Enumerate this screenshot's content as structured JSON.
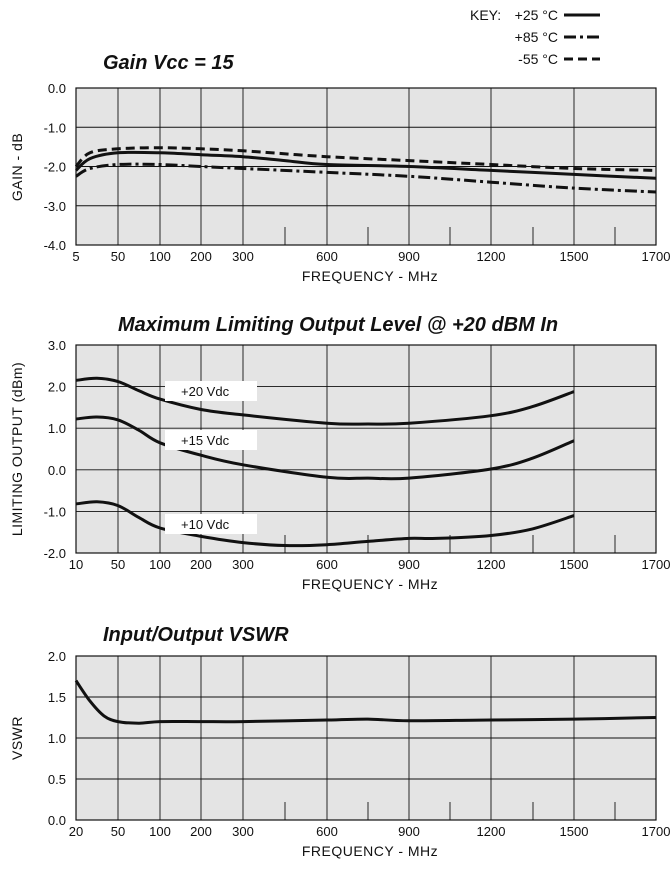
{
  "key": {
    "label": "KEY:",
    "entries": [
      {
        "text": "+25 °C",
        "style": "solid"
      },
      {
        "text": "+85 °C",
        "style": "dashdot"
      },
      {
        "text": "-55 °C",
        "style": "dashed"
      }
    ]
  },
  "chart_data": [
    {
      "type": "line",
      "id": "gain",
      "title": "Gain  Vcc = 15",
      "xlabel": "FREQUENCY - MHz",
      "ylabel": "GAIN - dB",
      "xticks": [
        "5",
        "50",
        "100",
        "200",
        "300",
        "600",
        "900",
        "1200",
        "1500",
        "1700"
      ],
      "yticks": [
        "0.0",
        "-1.0",
        "-2.0",
        "-3.0",
        "-4.0"
      ],
      "ylim": [
        -4,
        0
      ],
      "grid": true,
      "series": [
        {
          "name": "+25 °C",
          "style": "solid",
          "points": [
            [
              5,
              -2.1
            ],
            [
              20,
              -1.8
            ],
            [
              50,
              -1.65
            ],
            [
              100,
              -1.65
            ],
            [
              200,
              -1.7
            ],
            [
              300,
              -1.75
            ],
            [
              450,
              -1.85
            ],
            [
              600,
              -1.95
            ],
            [
              900,
              -2.0
            ],
            [
              1200,
              -2.1
            ],
            [
              1500,
              -2.2
            ],
            [
              1700,
              -2.3
            ]
          ]
        },
        {
          "name": "+85 °C",
          "style": "dashdot",
          "points": [
            [
              5,
              -2.25
            ],
            [
              20,
              -2.05
            ],
            [
              50,
              -1.95
            ],
            [
              100,
              -1.95
            ],
            [
              200,
              -2.0
            ],
            [
              300,
              -2.05
            ],
            [
              600,
              -2.15
            ],
            [
              900,
              -2.25
            ],
            [
              1200,
              -2.4
            ],
            [
              1500,
              -2.55
            ],
            [
              1700,
              -2.65
            ]
          ]
        },
        {
          "name": "-55 °C",
          "style": "dashed",
          "points": [
            [
              5,
              -2.0
            ],
            [
              20,
              -1.65
            ],
            [
              50,
              -1.55
            ],
            [
              100,
              -1.52
            ],
            [
              200,
              -1.55
            ],
            [
              300,
              -1.6
            ],
            [
              600,
              -1.75
            ],
            [
              900,
              -1.85
            ],
            [
              1200,
              -1.95
            ],
            [
              1500,
              -2.05
            ],
            [
              1700,
              -2.1
            ]
          ]
        }
      ]
    },
    {
      "type": "line",
      "id": "limiting",
      "title": "Maximum Limiting Output Level @ +20 dBM In",
      "xlabel": "FREQUENCY - MHz",
      "ylabel": "LIMITING OUTPUT (dBm)",
      "xticks": [
        "10",
        "50",
        "100",
        "200",
        "300",
        "600",
        "900",
        "1200",
        "1500",
        "1700"
      ],
      "yticks": [
        "3.0",
        "2.0",
        "1.0",
        "0.0",
        "-1.0",
        "-2.0"
      ],
      "ylim": [
        -2,
        3
      ],
      "grid": true,
      "series": [
        {
          "name": "+20 Vdc",
          "style": "solid",
          "points": [
            [
              10,
              2.15
            ],
            [
              30,
              2.2
            ],
            [
              50,
              2.12
            ],
            [
              75,
              1.9
            ],
            [
              100,
              1.7
            ],
            [
              200,
              1.45
            ],
            [
              300,
              1.32
            ],
            [
              600,
              1.12
            ],
            [
              750,
              1.1
            ],
            [
              900,
              1.12
            ],
            [
              1200,
              1.3
            ],
            [
              1350,
              1.52
            ],
            [
              1500,
              1.88
            ]
          ]
        },
        {
          "name": "+15 Vdc",
          "style": "solid",
          "points": [
            [
              10,
              1.22
            ],
            [
              30,
              1.27
            ],
            [
              50,
              1.2
            ],
            [
              75,
              0.95
            ],
            [
              100,
              0.65
            ],
            [
              200,
              0.35
            ],
            [
              300,
              0.12
            ],
            [
              600,
              -0.18
            ],
            [
              750,
              -0.2
            ],
            [
              900,
              -0.2
            ],
            [
              1200,
              0.02
            ],
            [
              1350,
              0.28
            ],
            [
              1500,
              0.7
            ]
          ]
        },
        {
          "name": "+10 Vdc",
          "style": "solid",
          "points": [
            [
              10,
              -0.82
            ],
            [
              30,
              -0.77
            ],
            [
              50,
              -0.86
            ],
            [
              75,
              -1.15
            ],
            [
              100,
              -1.4
            ],
            [
              200,
              -1.6
            ],
            [
              300,
              -1.75
            ],
            [
              450,
              -1.82
            ],
            [
              600,
              -1.8
            ],
            [
              750,
              -1.72
            ],
            [
              900,
              -1.65
            ],
            [
              1000,
              -1.65
            ],
            [
              1200,
              -1.58
            ],
            [
              1350,
              -1.42
            ],
            [
              1500,
              -1.1
            ]
          ]
        }
      ]
    },
    {
      "type": "line",
      "id": "vswr",
      "title": "Input/Output VSWR",
      "xlabel": "FREQUENCY - MHz",
      "ylabel": "VSWR",
      "xticks": [
        "20",
        "50",
        "100",
        "200",
        "300",
        "600",
        "900",
        "1200",
        "1500",
        "1700"
      ],
      "yticks": [
        "2.0",
        "1.5",
        "1.0",
        "0.5",
        "0.0"
      ],
      "ylim": [
        0,
        2
      ],
      "grid": true,
      "series": [
        {
          "name": "VSWR",
          "style": "solid",
          "points": [
            [
              20,
              1.7
            ],
            [
              30,
              1.45
            ],
            [
              40,
              1.27
            ],
            [
              50,
              1.2
            ],
            [
              75,
              1.18
            ],
            [
              100,
              1.2
            ],
            [
              200,
              1.2
            ],
            [
              300,
              1.2
            ],
            [
              600,
              1.22
            ],
            [
              750,
              1.23
            ],
            [
              900,
              1.21
            ],
            [
              1200,
              1.22
            ],
            [
              1500,
              1.23
            ],
            [
              1700,
              1.25
            ]
          ]
        }
      ]
    }
  ]
}
